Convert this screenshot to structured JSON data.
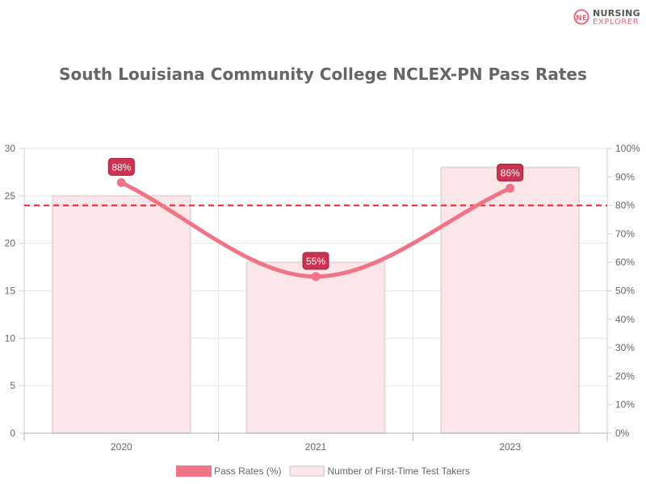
{
  "logo": {
    "line1": "NURSING",
    "line2": "EXPLORER",
    "initials": "NE"
  },
  "chart_data": {
    "type": "bar",
    "title": "South Louisiana Community College NCLEX-PN Pass Rates",
    "categories": [
      "2020",
      "2021",
      "2023"
    ],
    "series": [
      {
        "name": "Pass Rates (%)",
        "type": "line",
        "axis": "right",
        "values": [
          88,
          55,
          86
        ],
        "labels": [
          "88%",
          "55%",
          "86%"
        ],
        "color": "#f07486"
      },
      {
        "name": "Number of First-Time Test Takers",
        "type": "bar",
        "axis": "left",
        "values": [
          25,
          18,
          28
        ],
        "color": "#fbe6ea",
        "border_color": "#e8d8dc"
      }
    ],
    "left_axis": {
      "ylim": [
        0,
        30
      ],
      "ticks": [
        0,
        5,
        10,
        15,
        20,
        25,
        30
      ],
      "tick_labels": [
        "0",
        "5",
        "10",
        "15",
        "20",
        "25",
        "30"
      ]
    },
    "right_axis": {
      "ylim": [
        0,
        100
      ],
      "ticks": [
        0,
        10,
        20,
        30,
        40,
        50,
        60,
        70,
        80,
        90,
        100
      ],
      "tick_labels": [
        "0%",
        "10%",
        "20%",
        "30%",
        "40%",
        "50%",
        "60%",
        "70%",
        "80%",
        "90%",
        "100%"
      ]
    },
    "reference_line": {
      "axis": "right",
      "value": 80,
      "style": "dashed",
      "color": "#dd2233"
    },
    "grid": true,
    "legend": "bottom",
    "label_color": "#cc3350",
    "label_border_color": "#a8203a"
  }
}
